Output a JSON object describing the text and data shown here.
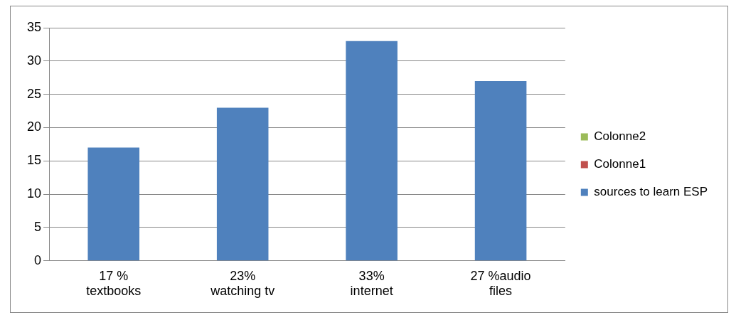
{
  "chart_data": {
    "type": "bar",
    "categories": [
      "17 % textbooks",
      "23% watching tv",
      "33% internet",
      "27 %audio files"
    ],
    "series": [
      {
        "name": "Colonne2",
        "color": "#9bbb59",
        "values": [
          null,
          null,
          null,
          null
        ]
      },
      {
        "name": "Colonne1",
        "color": "#c0504d",
        "values": [
          null,
          null,
          null,
          null
        ]
      },
      {
        "name": "sources to learn ESP",
        "color": "#4f81bd",
        "values": [
          17,
          23,
          33,
          27
        ]
      }
    ],
    "ylim": [
      0,
      35
    ],
    "yticks": [
      0,
      5,
      10,
      15,
      20,
      25,
      30,
      35
    ],
    "grid": "y",
    "legend": "right"
  }
}
